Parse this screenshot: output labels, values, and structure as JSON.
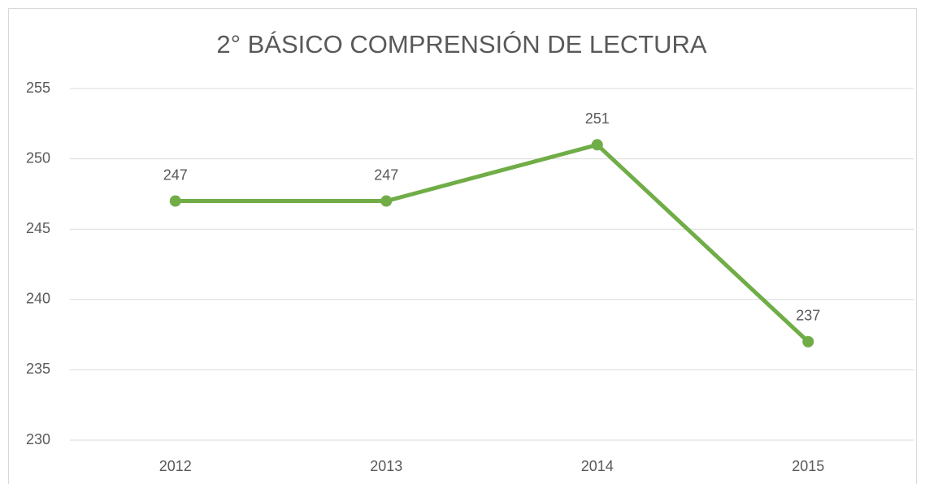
{
  "chart_data": {
    "type": "line",
    "title": "2° BÁSICO COMPRENSIÓN DE LECTURA",
    "categories": [
      "2012",
      "2013",
      "2014",
      "2015"
    ],
    "values": [
      247,
      247,
      251,
      237
    ],
    "color": "#70ad47",
    "ylim": [
      230,
      255
    ],
    "yticks": [
      230,
      235,
      240,
      245,
      250,
      255
    ],
    "grid": true
  }
}
